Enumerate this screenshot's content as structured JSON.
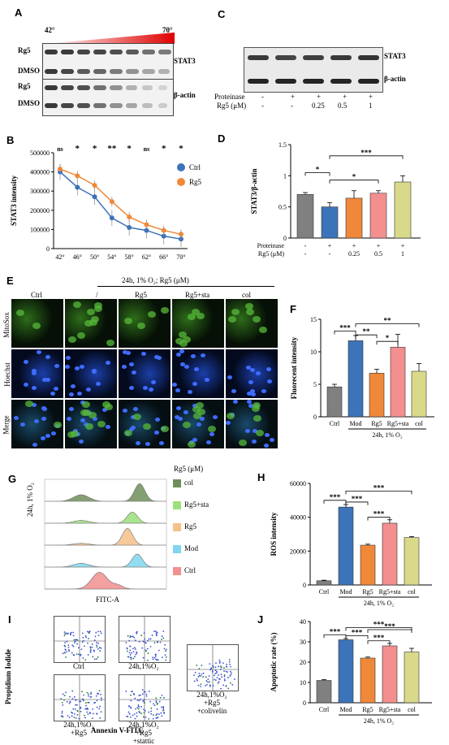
{
  "panels": [
    "A",
    "B",
    "C",
    "D",
    "E",
    "F",
    "G",
    "H",
    "I",
    "J"
  ],
  "panelA": {
    "temp_start": "42°",
    "temp_end": "70°",
    "row_labels": [
      "Rg5",
      "DMSO",
      "Rg5",
      "DMSO"
    ],
    "protein_labels": [
      "STAT3",
      "β-actin"
    ]
  },
  "panelC": {
    "protein_labels": [
      "STAT3",
      "β-actin"
    ],
    "row_proteinase_label": "Proteinase",
    "row_rg5_label": "Rg5 (μM)",
    "proteinase": [
      "-",
      "+",
      "+",
      "+",
      "+"
    ],
    "rg5": [
      "-",
      "-",
      "0.25",
      "0.5",
      "1"
    ]
  },
  "panelB": {
    "ylabel": "STAT3 intensity",
    "legend": [
      "Ctrl",
      "Rg5"
    ],
    "sig": [
      "ns",
      "*",
      "*",
      "**",
      "*",
      "ns",
      "*",
      "*"
    ]
  },
  "panelD": {
    "ylabel": "STAT3/β-actin",
    "row_proteinase_label": "Proteinase",
    "row_rg5_label": "Rg5 (μM)",
    "proteinase": [
      "-",
      "+",
      "+",
      "+",
      "+"
    ],
    "rg5": [
      "-",
      "-",
      "0.25",
      "0.5",
      "1"
    ],
    "sig": [
      "*",
      "***",
      "*"
    ]
  },
  "panelE": {
    "header": "24h, 1% O₂; Rg5 (μM)",
    "col_labels": [
      "Ctrl",
      "/",
      "Rg5",
      "Rg5+sta",
      "col"
    ],
    "row_labels": [
      "MitoSox",
      "Hoechst",
      "Merge"
    ]
  },
  "panelF": {
    "ylabel": "Fluorecent intensity",
    "categories": [
      "Ctrl",
      "Mod",
      "Rg5",
      "Rg5+sta",
      "col"
    ],
    "group_label": "24h, 1% O₂",
    "sig": [
      "***",
      "**",
      "*",
      "**"
    ]
  },
  "panelG": {
    "legend_title": "Rg5 (μM)",
    "legend": [
      "col",
      "Rg5+sta",
      "Rg5",
      "Mod",
      "Ctrl"
    ],
    "side_label": "24h, 1% O₂",
    "xlabel": "FITC-A"
  },
  "panelH": {
    "ylabel": "ROS intensity",
    "categories": [
      "Ctrl",
      "Mod",
      "Rg5",
      "Rg5+sta",
      "col"
    ],
    "group_label": "24h, 1% O₂",
    "sig": [
      "***",
      "***",
      "***",
      "***"
    ]
  },
  "panelI": {
    "ylabel": "Propidium Iodide",
    "xlabel": "Annexin V-FITC",
    "box_labels": [
      "Ctrl",
      "24h,1%O₂",
      "24h,1%O₂\n+Rg5",
      "24h,1%O₂\n+Rg5\n+stattic",
      "24h,1%O₂\n+Rg5\n+colivelin"
    ]
  },
  "panelJ": {
    "ylabel": "Apoptotic rate (%)",
    "categories": [
      "Ctrl",
      "Mod",
      "Rg5",
      "Rg5+sta",
      "col"
    ],
    "group_label": "24h, 1% O₂",
    "sig": [
      "***",
      "***",
      "***",
      "***",
      "***"
    ]
  },
  "chart_data": [
    {
      "type": "line",
      "panel": "B",
      "x": [
        "42°",
        "46°",
        "50°",
        "54°",
        "58°",
        "62°",
        "66°",
        "70°"
      ],
      "series": [
        {
          "name": "Ctrl",
          "values": [
            400000,
            320000,
            270000,
            160000,
            110000,
            95000,
            65000,
            50000
          ],
          "color": "#3d73b8"
        },
        {
          "name": "Rg5",
          "values": [
            415000,
            380000,
            330000,
            245000,
            165000,
            125000,
            95000,
            75000
          ],
          "color": "#f0883a"
        }
      ],
      "ylabel": "STAT3 intensity",
      "ylim": [
        0,
        500000
      ],
      "yticks": [
        0,
        100000,
        200000,
        300000,
        400000,
        500000
      ],
      "legend": "top-right"
    },
    {
      "type": "bar",
      "panel": "D",
      "categories": [
        "1",
        "2",
        "3",
        "4",
        "5"
      ],
      "values": [
        0.7,
        0.5,
        0.64,
        0.72,
        0.9
      ],
      "errors": [
        0.03,
        0.07,
        0.12,
        0.04,
        0.1
      ],
      "colors": [
        "#808080",
        "#3d73b8",
        "#f0883a",
        "#f38f8f",
        "#d9d98a"
      ],
      "ylabel": "STAT3/β-actin",
      "ylim": [
        0,
        1.5
      ],
      "yticks": [
        0,
        0.5,
        1,
        1.5
      ]
    },
    {
      "type": "bar",
      "panel": "F",
      "categories": [
        "Ctrl",
        "Mod",
        "Rg5",
        "Rg5+sta",
        "col"
      ],
      "values": [
        4.6,
        11.7,
        6.7,
        10.7,
        7.0
      ],
      "errors": [
        0.4,
        0.8,
        0.6,
        2.0,
        1.2
      ],
      "colors": [
        "#808080",
        "#3d73b8",
        "#f0883a",
        "#f38f8f",
        "#d9d98a"
      ],
      "ylabel": "Fluorecent intensity",
      "ylim": [
        0,
        15
      ],
      "yticks": [
        0,
        5,
        10,
        15
      ]
    },
    {
      "type": "bar",
      "panel": "H",
      "categories": [
        "Ctrl",
        "Mod",
        "Rg5",
        "Rg5+sta",
        "col"
      ],
      "values": [
        2500,
        46000,
        23500,
        36500,
        28000
      ],
      "errors": [
        300,
        1500,
        600,
        2000,
        600
      ],
      "colors": [
        "#808080",
        "#3d73b8",
        "#f0883a",
        "#f38f8f",
        "#d9d98a"
      ],
      "ylabel": "ROS intensity",
      "ylim": [
        0,
        60000
      ],
      "yticks": [
        0,
        20000,
        40000,
        60000
      ]
    },
    {
      "type": "bar",
      "panel": "J",
      "categories": [
        "Ctrl",
        "Mod",
        "Rg5",
        "Rg5+sta",
        "col"
      ],
      "values": [
        11,
        31,
        22,
        28,
        25
      ],
      "errors": [
        0.4,
        0.6,
        0.5,
        1.2,
        1.8
      ],
      "colors": [
        "#808080",
        "#3d73b8",
        "#f0883a",
        "#f38f8f",
        "#d9d98a"
      ],
      "ylabel": "Apoptotic rate (%)",
      "ylim": [
        0,
        40
      ],
      "yticks": [
        0,
        10,
        20,
        30,
        40
      ]
    }
  ]
}
